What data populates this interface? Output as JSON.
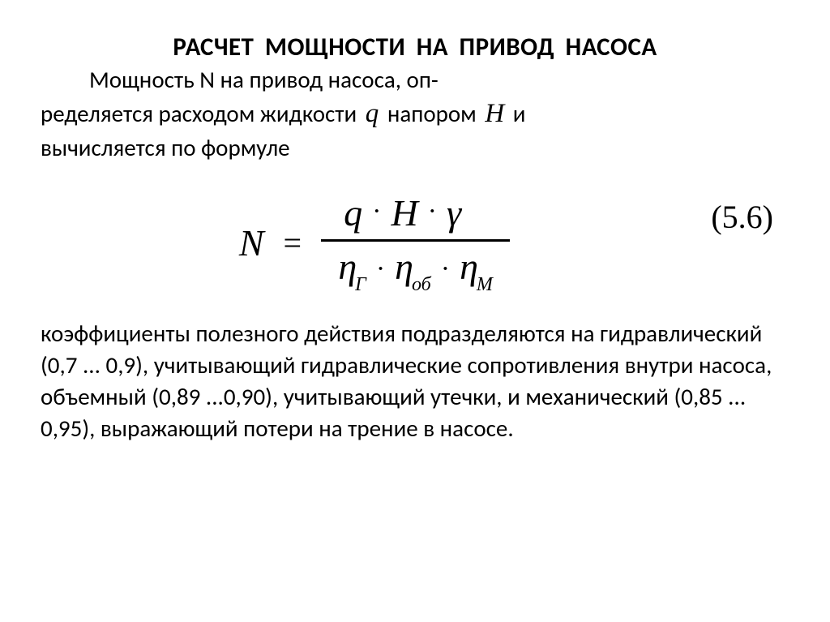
{
  "title": "РАСЧЕТ   МОЩНОСТИ  НА ПРИВОД НАСОСА",
  "intro": {
    "line1_prefix": "Мощность   N   на привод насоса, оп-",
    "line2_prefix": "ределяется расходом жидкости ",
    "sym_q": "q",
    "line2_mid": "  напором   ",
    "sym_H": "H",
    "line2_end": "   и",
    "line3": "вычисляется по формуле"
  },
  "formula": {
    "lhs": "N",
    "eq": "=",
    "num_q": "q",
    "num_dot1": "·",
    "num_H": "H",
    "num_dot2": "·",
    "num_gamma": "γ",
    "den_eta1": "η",
    "den_sub1": "Г",
    "den_dot1": "·",
    "den_eta2": "η",
    "den_sub2": "об",
    "den_dot2": "·",
    "den_eta3": "η",
    "den_sub3": "М",
    "number": "(5.6)"
  },
  "body": "коэффициенты полезного действия подразделяются на гидравлический (0,7 ... 0,9), учитывающий гидравлические сопротивления внутри насоса, объемный (0,89 ...0,90), учитывающий утечки, и механический (0,85 ... 0,95), выражающий потери на трение в насосе.",
  "style": {
    "background_color": "#ffffff",
    "text_color": "#000000",
    "title_fontsize": 31,
    "title_weight": 700,
    "body_fontsize": 29,
    "formula_fontsize": 46,
    "formula_font": "Times New Roman",
    "body_font": "Calibri",
    "eq_number_fontsize": 40,
    "fraction_rule_color": "#000000",
    "fraction_rule_width": 3
  }
}
